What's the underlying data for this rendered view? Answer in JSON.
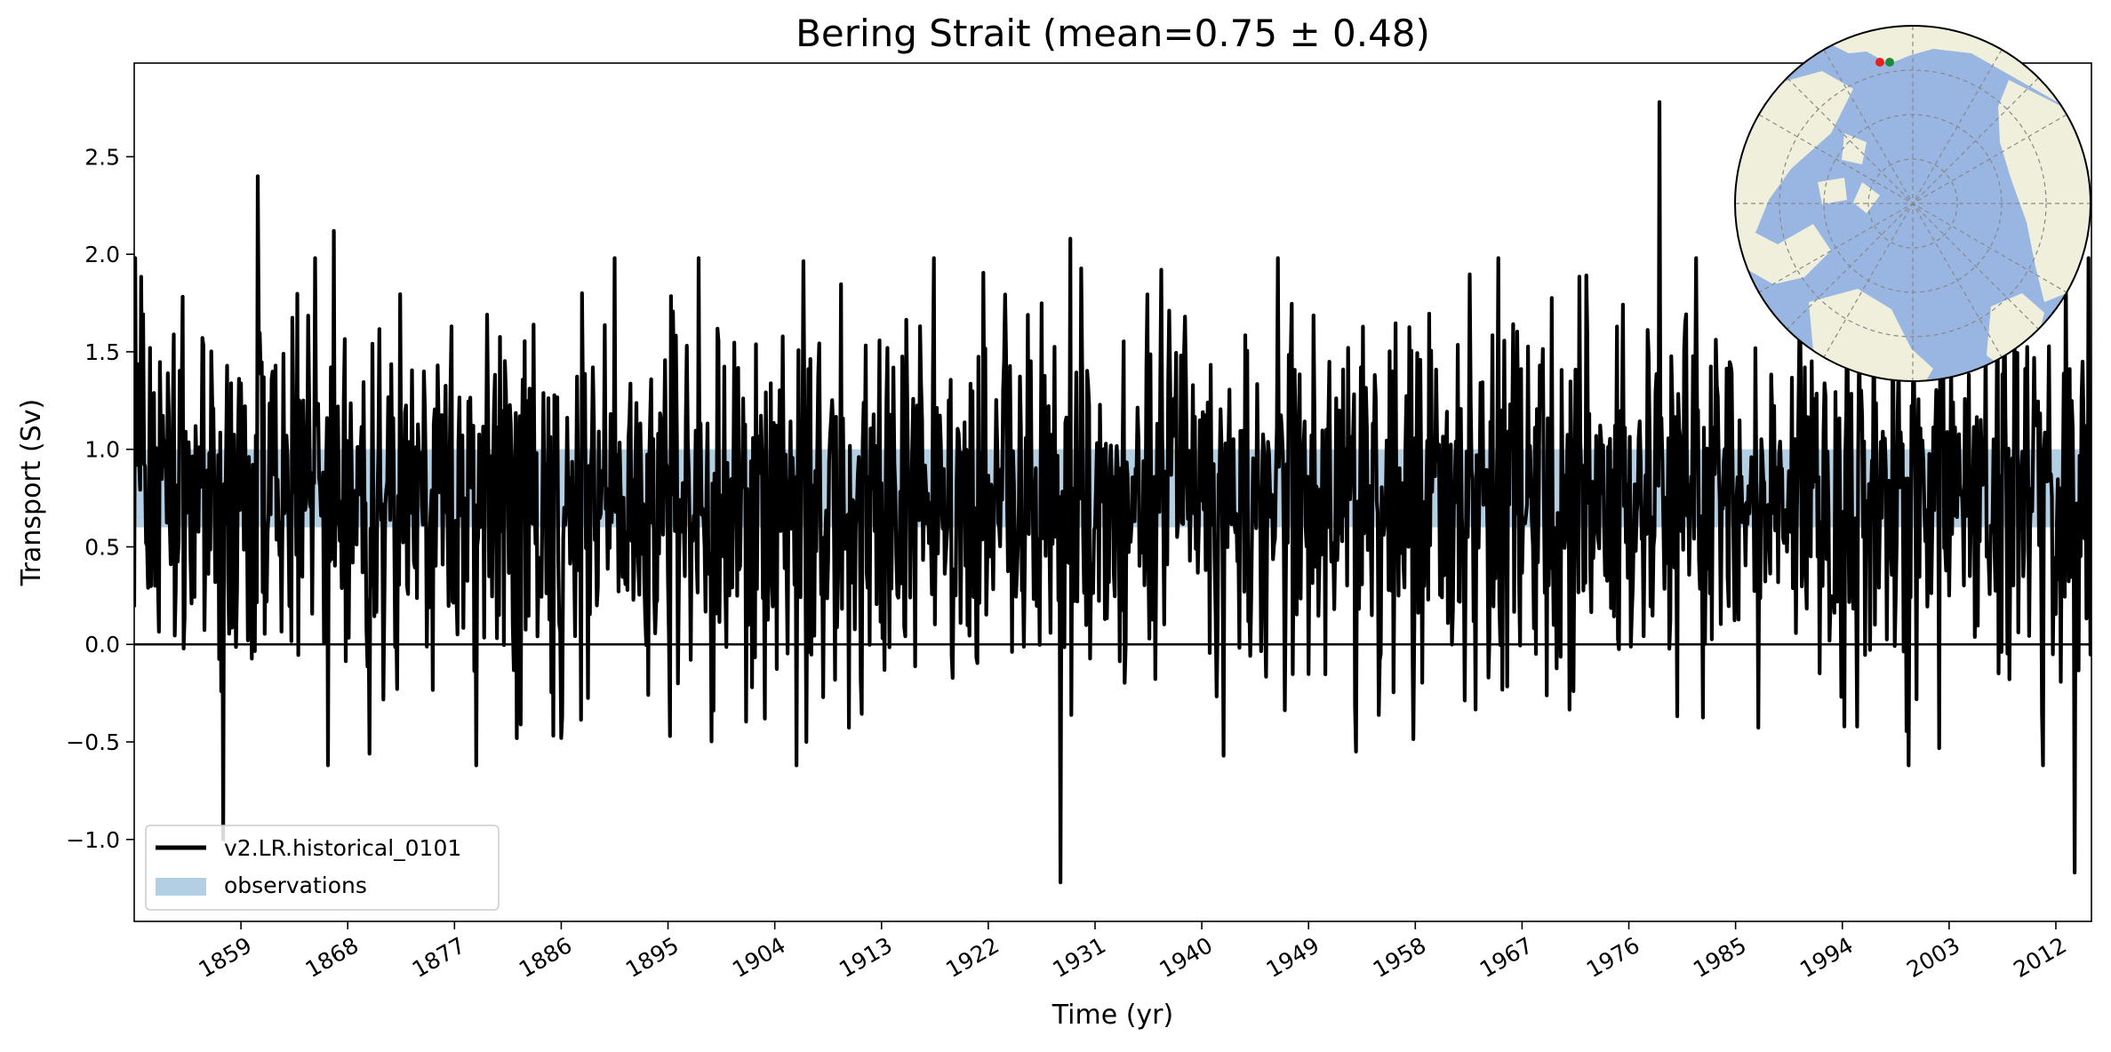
{
  "chart_data": {
    "type": "line",
    "title": "Bering Strait (mean=0.75 ± 0.48)",
    "xlabel": "Time (yr)",
    "ylabel": "Transport (Sv)",
    "xlim": [
      1850,
      2015
    ],
    "ylim": [
      -1.42,
      2.98
    ],
    "x_ticks": [
      "1859",
      "1868",
      "1877",
      "1886",
      "1895",
      "1904",
      "1913",
      "1922",
      "1931",
      "1940",
      "1949",
      "1958",
      "1967",
      "1976",
      "1985",
      "1994",
      "2003",
      "2012"
    ],
    "y_ticks": [
      "−1.0",
      "−0.5",
      "0.0",
      "0.5",
      "1.0",
      "1.5",
      "2.0",
      "2.5"
    ],
    "y_tick_values": [
      -1.0,
      -0.5,
      0.0,
      0.5,
      1.0,
      1.5,
      2.0,
      2.5
    ],
    "zero_line": 0.0,
    "observations_band": [
      0.6,
      1.0
    ],
    "legend_position": "lower-left",
    "grid": false,
    "series": [
      {
        "name": "v2.LR.historical_0101",
        "color": "#000000",
        "mean": 0.75,
        "std": 0.48,
        "highlights": [
          {
            "x": 1850.05,
            "y": 1.98
          },
          {
            "x": 1857.5,
            "y": -1.0
          },
          {
            "x": 1860.4,
            "y": 2.4
          },
          {
            "x": 1866.8,
            "y": 2.12
          },
          {
            "x": 1869.8,
            "y": -0.56
          },
          {
            "x": 1886.0,
            "y": -0.48
          },
          {
            "x": 1895.2,
            "y": -0.47
          },
          {
            "x": 1906.7,
            "y": -0.5
          },
          {
            "x": 1928.1,
            "y": -1.22
          },
          {
            "x": 1928.9,
            "y": 2.08
          },
          {
            "x": 1978.6,
            "y": 2.78
          },
          {
            "x": 2013.6,
            "y": -1.17
          }
        ]
      }
    ],
    "observations": {
      "name": "observations",
      "color": "#b3cfe4"
    },
    "inset_map": {
      "type": "polar-map",
      "ocean_color": "#99b6e2",
      "land_color": "#efefdb",
      "marker_colors": [
        "#e8201c",
        "#1c8a3a"
      ]
    }
  }
}
